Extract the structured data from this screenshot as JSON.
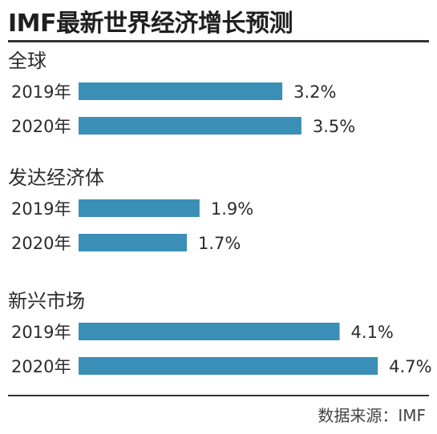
{
  "title": "IMF最新世界经济增长预测",
  "source": "数据来源：IMF",
  "chart_data": {
    "type": "bar",
    "orientation": "horizontal",
    "title": "IMF最新世界经济增长预测",
    "unit": "%",
    "bar_color": "#3a8fb7",
    "groups": [
      {
        "name": "全球",
        "bars": [
          {
            "label": "2019年",
            "value": 3.2,
            "text": "3.2%"
          },
          {
            "label": "2020年",
            "value": 3.5,
            "text": "3.5%"
          }
        ]
      },
      {
        "name": "发达经济体",
        "bars": [
          {
            "label": "2019年",
            "value": 1.9,
            "text": "1.9%"
          },
          {
            "label": "2020年",
            "value": 1.7,
            "text": "1.7%"
          }
        ]
      },
      {
        "name": "新兴市场",
        "bars": [
          {
            "label": "2019年",
            "value": 4.1,
            "text": "4.1%"
          },
          {
            "label": "2020年",
            "value": 4.7,
            "text": "4.7%"
          }
        ]
      }
    ]
  }
}
